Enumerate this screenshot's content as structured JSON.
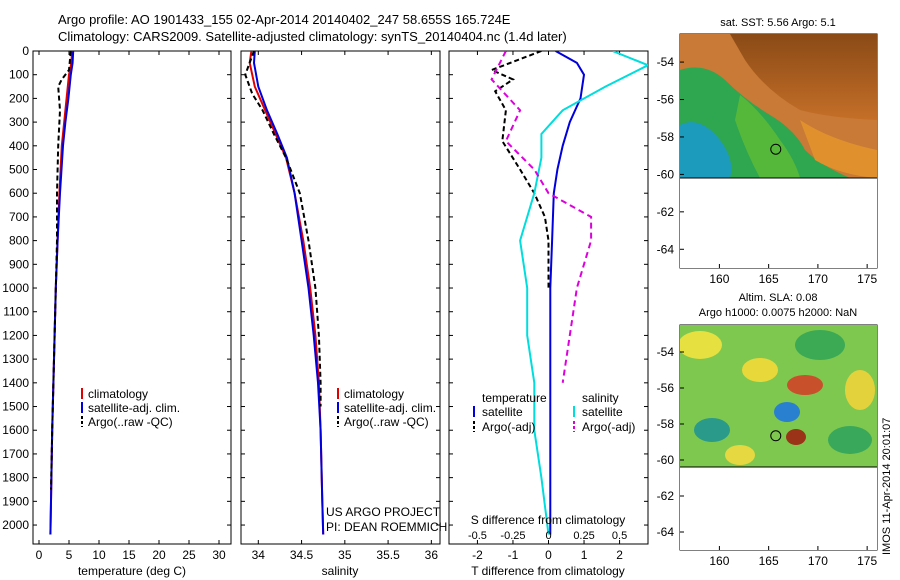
{
  "header": {
    "line1": "Argo profile: AO 1901433_155 02-Apr-2014 20140402_247 58.655S 165.724E",
    "line2": "Climatology: CARS2009. Satellite-adjusted climatology: synTS_20140404.nc (1.4d later)"
  },
  "side_stamp": "IMOS 11-Apr-2014 20:01:07",
  "project": {
    "line1": "US ARGO PROJECT",
    "line2": "PI: DEAN ROEMMICH"
  },
  "colors": {
    "climatology": "#e00000",
    "satellite": "#0000dd",
    "argo": "#000000",
    "s_satellite": "#00dddd",
    "s_argo": "#dd00dd"
  },
  "chart_data": [
    {
      "type": "line",
      "id": "temperature",
      "xlabel": "temperature (deg C)",
      "ylabel": "",
      "xlim": [
        -1,
        32
      ],
      "ylim": [
        2080,
        0
      ],
      "xticks": [
        0,
        5,
        10,
        15,
        20,
        25,
        30
      ],
      "yticks": [
        0,
        100,
        200,
        300,
        400,
        500,
        600,
        700,
        800,
        900,
        1000,
        1100,
        1200,
        1300,
        1400,
        1500,
        1600,
        1700,
        1800,
        1900,
        2000
      ],
      "legend": {
        "position": "center-right",
        "entries": [
          "climatology",
          "satellite-adj. clim.",
          "Argo(..raw -QC)"
        ]
      },
      "series": [
        {
          "name": "climatology",
          "color": "#e00000",
          "dash": "",
          "x": [
            5.5,
            5.4,
            5.0,
            4.6,
            4.2,
            3.8,
            3.4,
            3.1,
            2.8,
            2.6,
            2.4,
            2.2,
            2.0,
            1.9
          ],
          "y": [
            0,
            50,
            100,
            200,
            300,
            400,
            600,
            800,
            1000,
            1200,
            1400,
            1600,
            1900,
            2040
          ]
        },
        {
          "name": "satellite-adj. clim.",
          "color": "#0000dd",
          "dash": "",
          "x": [
            5.7,
            5.6,
            5.3,
            4.9,
            4.4,
            4.0,
            3.5,
            3.1,
            2.8,
            2.6,
            2.4,
            2.2,
            2.0,
            1.9
          ],
          "y": [
            0,
            50,
            100,
            200,
            300,
            400,
            600,
            800,
            1000,
            1200,
            1400,
            1600,
            1900,
            2040
          ]
        },
        {
          "name": "Argo(..raw -QC)",
          "color": "#000000",
          "dash": "5,3",
          "x": [
            5.3,
            5.0,
            3.8,
            3.2,
            3.5,
            3.2,
            3.0,
            3.0,
            2.8,
            2.6,
            2.4,
            2.2,
            2.0
          ],
          "y": [
            0,
            80,
            120,
            150,
            250,
            400,
            600,
            800,
            1000,
            1200,
            1400,
            1600,
            1850
          ]
        }
      ]
    },
    {
      "type": "line",
      "id": "salinity",
      "xlabel": "salinity",
      "ylabel": "",
      "xlim": [
        33.8,
        36.1
      ],
      "ylim": [
        2080,
        0
      ],
      "xticks": [
        34,
        34.5,
        35,
        35.5,
        36
      ],
      "yticks": [],
      "legend": {
        "position": "center-right",
        "entries": [
          "climatology",
          "satellite-adj. clim.",
          "Argo(..raw -QC)"
        ]
      },
      "series": [
        {
          "name": "climatology",
          "color": "#e00000",
          "dash": "",
          "x": [
            33.92,
            33.9,
            33.96,
            34.08,
            34.2,
            34.32,
            34.42,
            34.52,
            34.6,
            34.66,
            34.7,
            34.72,
            34.74,
            34.75
          ],
          "y": [
            0,
            50,
            150,
            250,
            350,
            450,
            600,
            800,
            1000,
            1200,
            1400,
            1600,
            1900,
            2040
          ]
        },
        {
          "name": "satellite-adj. clim.",
          "color": "#0000dd",
          "dash": "",
          "x": [
            33.96,
            33.95,
            34.0,
            34.1,
            34.22,
            34.33,
            34.42,
            34.5,
            34.58,
            34.64,
            34.69,
            34.72,
            34.74,
            34.75
          ],
          "y": [
            0,
            50,
            150,
            250,
            350,
            450,
            600,
            800,
            1000,
            1200,
            1400,
            1600,
            1900,
            2040
          ]
        },
        {
          "name": "Argo(..raw -QC)",
          "color": "#000000",
          "dash": "5,3",
          "x": [
            33.95,
            33.85,
            33.93,
            34.05,
            34.18,
            34.32,
            34.48,
            34.58,
            34.66,
            34.7,
            34.72,
            34.72
          ],
          "y": [
            0,
            100,
            180,
            250,
            350,
            450,
            600,
            800,
            1000,
            1200,
            1400,
            1500
          ]
        }
      ]
    },
    {
      "type": "line",
      "id": "difference",
      "xlabel": "T difference from climatology",
      "xlabel_top": "S difference from climatology",
      "xlim": [
        -2.8,
        2.8
      ],
      "ylim": [
        2080,
        0
      ],
      "xticks": [
        -2,
        -1,
        0,
        1,
        2
      ],
      "xticks_s_labels": [
        "-0.5",
        "-0.25",
        "0",
        "0.25",
        "0.5"
      ],
      "xticks_s_values": [
        -0.5,
        -0.25,
        0,
        0.25,
        0.5
      ],
      "s_scale": 4,
      "legend_titles": [
        "temperature",
        "salinity"
      ],
      "legend": {
        "position": "center-right",
        "entries": [
          "satellite",
          "Argo(-adj)",
          "satellite",
          "Argo(-adj)"
        ]
      },
      "series": [
        {
          "name": "satellite",
          "group": "temperature",
          "color": "#0000dd",
          "dash": "",
          "x": [
            0.2,
            0.8,
            1.0,
            0.9,
            0.6,
            0.4,
            0.25,
            0.15,
            0.1,
            0.05,
            0.05,
            0.05,
            0.05,
            0.05
          ],
          "y": [
            0,
            50,
            100,
            200,
            300,
            400,
            500,
            600,
            800,
            1000,
            1200,
            1400,
            1700,
            2040
          ]
        },
        {
          "name": "Argo(-adj)",
          "group": "temperature",
          "color": "#000000",
          "dash": "5,3",
          "x": [
            -0.2,
            -1.6,
            -1.0,
            -1.5,
            -1.2,
            -1.3,
            -0.8,
            -0.4,
            -0.1,
            0.0,
            0.0,
            0.0
          ],
          "y": [
            0,
            80,
            120,
            170,
            250,
            380,
            500,
            600,
            700,
            800,
            900,
            1000
          ]
        },
        {
          "name": "satellite",
          "group": "salinity",
          "color": "#00dddd",
          "dash": "",
          "x": [
            0.45,
            0.7,
            0.4,
            0.1,
            -0.05,
            -0.05,
            -0.1,
            -0.2,
            -0.15,
            -0.15,
            -0.1,
            -0.1,
            -0.05,
            0.0
          ],
          "y": [
            0,
            60,
            150,
            250,
            350,
            450,
            600,
            800,
            1000,
            1200,
            1400,
            1600,
            1800,
            2040
          ]
        },
        {
          "name": "Argo(-adj)",
          "group": "salinity",
          "color": "#dd00dd",
          "dash": "6,4",
          "x": [
            -0.3,
            -0.4,
            -0.2,
            -0.3,
            -0.1,
            0.0,
            0.3,
            0.3,
            0.2,
            0.15,
            0.1
          ],
          "y": [
            0,
            120,
            250,
            380,
            500,
            600,
            700,
            800,
            1000,
            1200,
            1400
          ]
        }
      ]
    },
    {
      "type": "heatmap",
      "id": "sst_map",
      "title": "sat. SST: 5.56  Argo: 5.1",
      "xlim": [
        156,
        176
      ],
      "ylim": [
        -65,
        -52.5
      ],
      "xticks": [
        160,
        165,
        170,
        175
      ],
      "yticks": [
        -54,
        -56,
        -58,
        -60,
        -62,
        -64
      ],
      "float_position": {
        "lon": 165.724,
        "lat": -58.655
      }
    },
    {
      "type": "heatmap",
      "id": "sla_map",
      "title_line1": "Altim. SLA: 0.08",
      "title_line2": "Argo h1000: 0.0075 h2000: NaN",
      "xlim": [
        156,
        176
      ],
      "ylim": [
        -65,
        -52.5
      ],
      "xticks": [
        160,
        165,
        170,
        175
      ],
      "yticks": [
        -54,
        -56,
        -58,
        -60,
        -62,
        -64
      ],
      "float_position": {
        "lon": 165.724,
        "lat": -58.655
      }
    }
  ]
}
